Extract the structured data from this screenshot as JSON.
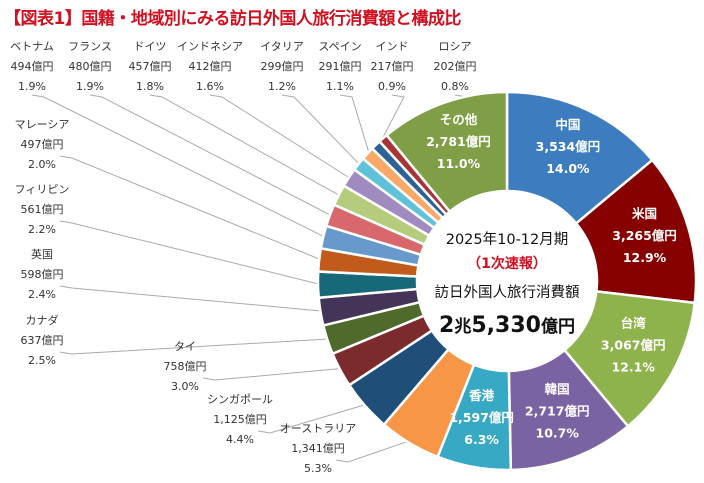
{
  "title": "【図表1】国籍・地域別にみる訪日外国人旅行消費額と構成比",
  "center": {
    "period": "2025年10-12月期",
    "note": "（1次速報）",
    "caption": "訪日外国人旅行消費額",
    "total_big1": "2",
    "total_unit1": "兆",
    "total_big2": "5,330",
    "total_unit2": "億円"
  },
  "chart_data": {
    "type": "pie",
    "variant": "donut",
    "unit": "億円",
    "total": 25330,
    "direction": "clockwise from top",
    "slices": [
      {
        "label": "中国",
        "value": 3534,
        "value_label": "3,534億円",
        "pct": "14.0%",
        "color": "#3d7dbf"
      },
      {
        "label": "米国",
        "value": 3265,
        "value_label": "3,265億円",
        "pct": "12.9%",
        "color": "#870000"
      },
      {
        "label": "台湾",
        "value": 3067,
        "value_label": "3,067億円",
        "pct": "12.1%",
        "color": "#8fb34c"
      },
      {
        "label": "韓国",
        "value": 2717,
        "value_label": "2,717億円",
        "pct": "10.7%",
        "color": "#7a63a3"
      },
      {
        "label": "香港",
        "value": 1597,
        "value_label": "1,597億円",
        "pct": "6.3%",
        "color": "#37a9c5"
      },
      {
        "label": "オーストラリア",
        "value": 1341,
        "value_label": "1,341億円",
        "pct": "5.3%",
        "color": "#f79646"
      },
      {
        "label": "シンガポール",
        "value": 1125,
        "value_label": "1,125億円",
        "pct": "4.4%",
        "color": "#1f4e79"
      },
      {
        "label": "タイ",
        "value": 758,
        "value_label": "758億円",
        "pct": "3.0%",
        "color": "#7b2b2b"
      },
      {
        "label": "カナダ",
        "value": 637,
        "value_label": "637億円",
        "pct": "2.5%",
        "color": "#506a2c"
      },
      {
        "label": "英国",
        "value": 598,
        "value_label": "598億円",
        "pct": "2.4%",
        "color": "#433458"
      },
      {
        "label": "フィリピン",
        "value": 561,
        "value_label": "561億円",
        "pct": "2.2%",
        "color": "#176878"
      },
      {
        "label": "マレーシア",
        "value": 497,
        "value_label": "497億円",
        "pct": "2.0%",
        "color": "#c15a1a"
      },
      {
        "label": "ベトナム",
        "value": 494,
        "value_label": "494億円",
        "pct": "1.9%",
        "color": "#6899cc"
      },
      {
        "label": "フランス",
        "value": 480,
        "value_label": "480億円",
        "pct": "1.9%",
        "color": "#d9686c"
      },
      {
        "label": "ドイツ",
        "value": 457,
        "value_label": "457億円",
        "pct": "1.8%",
        "color": "#b4cc7c"
      },
      {
        "label": "インドネシア",
        "value": 412,
        "value_label": "412億円",
        "pct": "1.6%",
        "color": "#9f8bc0"
      },
      {
        "label": "イタリア",
        "value": 299,
        "value_label": "299億円",
        "pct": "1.2%",
        "color": "#5fc2d8"
      },
      {
        "label": "スペイン",
        "value": 291,
        "value_label": "291億円",
        "pct": "1.1%",
        "color": "#f9a868"
      },
      {
        "label": "インド",
        "value": 217,
        "value_label": "217億円",
        "pct": "0.9%",
        "color": "#2e6296"
      },
      {
        "label": "ロシア",
        "value": 202,
        "value_label": "202億円",
        "pct": "0.8%",
        "color": "#a83536"
      },
      {
        "label": "その他",
        "value": 2781,
        "value_label": "2,781億円",
        "pct": "11.0%",
        "color": "#7f9e46"
      }
    ]
  }
}
